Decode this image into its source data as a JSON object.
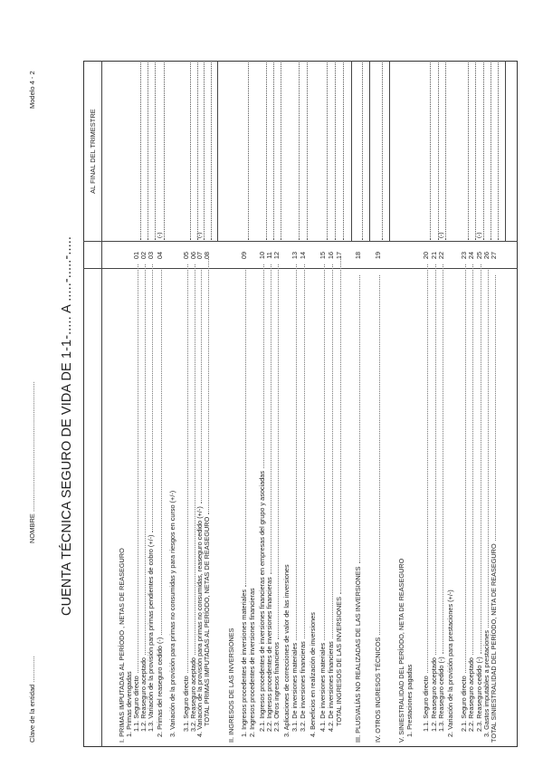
{
  "header": {
    "clave": "Clave de la entidad ..............",
    "nombre": "NOMBRE .....................................................................",
    "modelo": "Modelo 4 - 2",
    "title": "CUENTA TÉCNICA SEGURO DE VIDA  DE 1-1-..... A .....-.....-.....",
    "column_header": "AL FINAL DEL TRIMESTRE"
  },
  "negative_mark": "(-)",
  "rows": [
    {
      "text": "I. PRIMAS IMPUTADAS AL PERÍODO , NETAS DE REASEGURO",
      "code": ""
    },
    {
      "text": "1. Primas devengadas",
      "code": ""
    },
    {
      "text": "1.1. Seguro directo",
      "code": "01"
    },
    {
      "text": "1.2. Reaseguro aceptado",
      "code": "02"
    },
    {
      "text": "1.3. Variación de la provisión para primas pendientes de cobro (+/-)",
      "code": "03"
    },
    {
      "text": "2. Primas del reaseguro cedido (-)",
      "code": "04",
      "negative": true
    },
    {
      "text": "3. Variación de la provisión para primas no consumidas y para riesgos en curso (+/-)",
      "code": ""
    },
    {
      "text": "3.1. Seguro directo",
      "code": "05"
    },
    {
      "text": "3.2. Reaseguro aceptado",
      "code": "06"
    },
    {
      "text": "4. Variación de la provisión para primas no consumidas, reaseguro cedido (+/-)",
      "code": "07",
      "negative": true
    },
    {
      "text": "TOTAL PRIMAS IMPUTADAS AL PERÍODO, NETAS DE REASEGURO",
      "code": "08"
    },
    {
      "text": "II. INGRESOS DE LAS INVERSIONES",
      "code": ""
    },
    {
      "text": "1. Ingresos procedentes de inversiones materiales",
      "code": "09"
    },
    {
      "text": "2. Ingresos procedentes de inversiones financieras",
      "code": ""
    },
    {
      "text": "2.1. Ingresos procedentes de inversiones financieras en empresas del grupo y asociadas",
      "code": "10"
    },
    {
      "text": "2.2. Ingresos procedentes de inversiones financieras",
      "code": "11"
    },
    {
      "text": "2.3. Otros ingresos financieros",
      "code": "12"
    },
    {
      "text": "3. Aplicaciones de correcciones de valor de las inversiones",
      "code": ""
    },
    {
      "text": "3.1. De inversiones materiales",
      "code": "13"
    },
    {
      "text": "3.2. De inversiones financieras",
      "code": "14"
    },
    {
      "text": "4. Beneficios en realización de inversiones",
      "code": ""
    },
    {
      "text": "4.1. De inversiones materiales",
      "code": "15"
    },
    {
      "text": "4.2. De inversiones financieras",
      "code": "16"
    },
    {
      "text": "TOTAL INGRESOS DE LAS INVERSIONES",
      "code": "17"
    },
    {
      "text": "III. PLUSVALÍAS NO REALIZADAS DE LAS INVERSIONES",
      "code": "18"
    },
    {
      "text": "IV. OTROS INGRESOS TÉCNICOS",
      "code": "19"
    },
    {
      "text": "V. SINIESTRALIDAD DEL PERÍODO, NETA DE REASEGURO",
      "code": ""
    },
    {
      "text": "1. Prestaciones pagadas",
      "code": ""
    },
    {
      "text": "1.1. Seguro directo",
      "code": "20"
    },
    {
      "text": "1.2. Reaseguro aceptado",
      "code": "21"
    },
    {
      "text": "1.3. Reaseguro cedido (-)",
      "code": "22",
      "negative": true
    },
    {
      "text": "2. Variación de la provisión para prestaciones (+/-)",
      "code": ""
    },
    {
      "text": "2.1. Seguro directo",
      "code": "23"
    },
    {
      "text": "2.2. Reaseguro aceptado",
      "code": "24"
    },
    {
      "text": "2.3. Reaseguro cedido (-)",
      "code": "25",
      "negative": true
    },
    {
      "text": "3. Gastos imputables a prestaciones",
      "code": "26"
    },
    {
      "text": "TOTAL SINIESTRALIDAD DEL PERÍODO, NETA DE REASEGURO",
      "code": "27"
    }
  ]
}
